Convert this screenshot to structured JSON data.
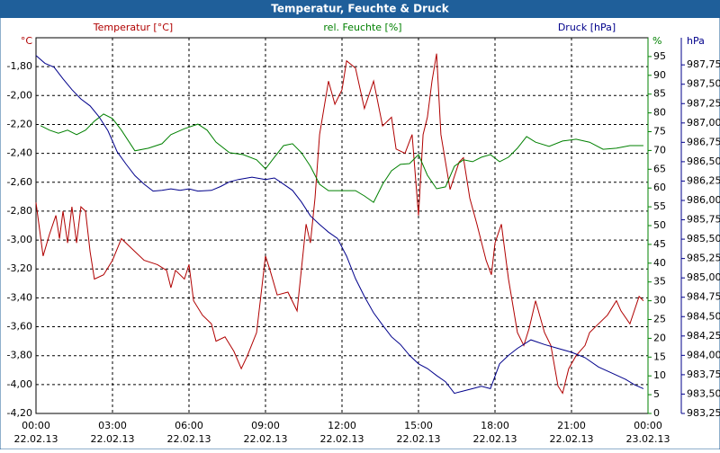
{
  "chart_data": {
    "type": "line",
    "title": "Temperatur, Feuchte & Druck",
    "grid": true,
    "xlim": [
      0,
      24
    ],
    "xticks": [
      {
        "value": 0,
        "label": "00:00"
      },
      {
        "value": 3,
        "label": "03:00"
      },
      {
        "value": 6,
        "label": "06:00"
      },
      {
        "value": 9,
        "label": "09:00"
      },
      {
        "value": 12,
        "label": "12:00"
      },
      {
        "value": 15,
        "label": "15:00"
      },
      {
        "value": 18,
        "label": "18:00"
      },
      {
        "value": 21,
        "label": "21:00"
      },
      {
        "value": 24,
        "label": "00:00"
      }
    ],
    "xtick_dates": [
      "22.02.13",
      "22.02.13",
      "22.02.13",
      "22.02.13",
      "22.02.13",
      "22.02.13",
      "22.02.13",
      "22.02.13",
      "23.02.13"
    ],
    "ylabel": "Temperatur [°C]",
    "yunit": "°C",
    "ycolor": "#b00000",
    "ylim": [
      -4.2,
      -1.6
    ],
    "yticks": [
      {
        "value": -4.2,
        "label": "-4,20"
      },
      {
        "value": -4.0,
        "label": "-4,00"
      },
      {
        "value": -3.8,
        "label": "-3,80"
      },
      {
        "value": -3.6,
        "label": "-3,60"
      },
      {
        "value": -3.4,
        "label": "-3,40"
      },
      {
        "value": -3.2,
        "label": "-3,20"
      },
      {
        "value": -3.0,
        "label": "-3,00"
      },
      {
        "value": -2.8,
        "label": "-2,80"
      },
      {
        "value": -2.6,
        "label": "-2,60"
      },
      {
        "value": -2.4,
        "label": "-2,40"
      },
      {
        "value": -2.2,
        "label": "-2,20"
      },
      {
        "value": -2.0,
        "label": "-2,00"
      },
      {
        "value": -1.8,
        "label": "-1,80"
      }
    ],
    "y2label": "rel. Feuchte [%]",
    "y2unit": "%",
    "y2color": "#008000",
    "y2lim": [
      0,
      100
    ],
    "y2ticks": [
      0,
      5,
      10,
      15,
      20,
      25,
      30,
      35,
      40,
      45,
      50,
      55,
      60,
      65,
      70,
      75,
      80,
      85,
      90,
      95
    ],
    "y3label": "Druck [hPa]",
    "y3unit": "hPa",
    "y3color": "#00008b",
    "y3lim": [
      983.25,
      988.1
    ],
    "y3ticks": [
      {
        "value": 983.25,
        "label": "983,25"
      },
      {
        "value": 983.5,
        "label": "983,50"
      },
      {
        "value": 983.75,
        "label": "983,75"
      },
      {
        "value": 984.0,
        "label": "984,00"
      },
      {
        "value": 984.25,
        "label": "984,25"
      },
      {
        "value": 984.5,
        "label": "984,50"
      },
      {
        "value": 984.75,
        "label": "984,75"
      },
      {
        "value": 985.0,
        "label": "985,00"
      },
      {
        "value": 985.25,
        "label": "985,25"
      },
      {
        "value": 985.5,
        "label": "985,50"
      },
      {
        "value": 985.75,
        "label": "985,75"
      },
      {
        "value": 986.0,
        "label": "986,00"
      },
      {
        "value": 986.25,
        "label": "986,25"
      },
      {
        "value": 986.5,
        "label": "986,50"
      },
      {
        "value": 986.75,
        "label": "986,75"
      },
      {
        "value": 987.0,
        "label": "987,00"
      },
      {
        "value": 987.25,
        "label": "987,25"
      },
      {
        "value": 987.5,
        "label": "987,50"
      },
      {
        "value": 987.75,
        "label": "987,75"
      }
    ],
    "series": [
      {
        "name": "Temperatur",
        "color": "#b00000",
        "axis": "y",
        "x": [
          0,
          0.28,
          0.53,
          0.78,
          0.92,
          1.06,
          1.24,
          1.41,
          1.59,
          1.76,
          1.94,
          2.12,
          2.29,
          2.65,
          3.0,
          3.35,
          3.88,
          4.24,
          4.76,
          5.12,
          5.29,
          5.47,
          5.82,
          6.0,
          6.18,
          6.53,
          6.88,
          7.06,
          7.41,
          7.76,
          8.05,
          8.29,
          8.65,
          9.0,
          9.18,
          9.46,
          9.88,
          10.24,
          10.59,
          10.76,
          10.94,
          11.12,
          11.29,
          11.47,
          11.72,
          12.0,
          12.18,
          12.53,
          12.88,
          13.24,
          13.59,
          13.94,
          14.12,
          14.47,
          14.75,
          15.0,
          15.18,
          15.35,
          15.53,
          15.71,
          15.88,
          16.24,
          16.59,
          16.76,
          17.01,
          17.29,
          17.65,
          17.86,
          18.0,
          18.25,
          18.53,
          18.88,
          19.13,
          19.34,
          19.59,
          19.94,
          20.19,
          20.47,
          20.65,
          20.89,
          21.18,
          21.53,
          21.71,
          22.06,
          22.41,
          22.76,
          22.94,
          23.29,
          23.65,
          23.82
        ],
        "values": [
          -2.74,
          -3.11,
          -2.96,
          -2.83,
          -2.99,
          -2.8,
          -3.02,
          -2.77,
          -3.02,
          -2.77,
          -2.8,
          -3.08,
          -3.27,
          -3.24,
          -3.14,
          -2.99,
          -3.08,
          -3.14,
          -3.17,
          -3.21,
          -3.33,
          -3.21,
          -3.27,
          -3.17,
          -3.42,
          -3.52,
          -3.58,
          -3.7,
          -3.67,
          -3.77,
          -3.89,
          -3.8,
          -3.64,
          -3.11,
          -3.21,
          -3.38,
          -3.36,
          -3.49,
          -2.89,
          -3.02,
          -2.71,
          -2.27,
          -2.09,
          -1.9,
          -2.06,
          -1.96,
          -1.76,
          -1.81,
          -2.09,
          -1.9,
          -2.21,
          -2.15,
          -2.37,
          -2.4,
          -2.27,
          -2.83,
          -2.27,
          -2.15,
          -1.9,
          -1.71,
          -2.27,
          -2.65,
          -2.46,
          -2.43,
          -2.71,
          -2.89,
          -3.14,
          -3.24,
          -3.02,
          -2.89,
          -3.27,
          -3.64,
          -3.73,
          -3.61,
          -3.42,
          -3.64,
          -3.73,
          -4.01,
          -4.06,
          -3.89,
          -3.8,
          -3.73,
          -3.64,
          -3.58,
          -3.52,
          -3.42,
          -3.49,
          -3.58,
          -3.39,
          -3.42
        ]
      },
      {
        "name": "rel. Feuchte",
        "color": "#008000",
        "axis": "y2",
        "x": [
          0.18,
          0.53,
          0.88,
          1.24,
          1.59,
          1.94,
          2.29,
          2.65,
          3.0,
          3.35,
          3.88,
          4.41,
          4.94,
          5.29,
          5.82,
          6.35,
          6.71,
          7.06,
          7.59,
          8.12,
          8.65,
          9.0,
          9.35,
          9.71,
          10.06,
          10.41,
          10.76,
          11.12,
          11.47,
          12.0,
          12.53,
          12.88,
          13.24,
          13.59,
          13.94,
          14.29,
          14.65,
          15.0,
          15.35,
          15.71,
          16.06,
          16.41,
          16.76,
          17.12,
          17.47,
          17.82,
          18.18,
          18.53,
          18.88,
          19.24,
          19.59,
          20.12,
          20.65,
          21.18,
          21.71,
          22.24,
          22.76,
          23.29,
          23.82
        ],
        "values": [
          76.6,
          75.4,
          74.6,
          75.4,
          74.2,
          75.4,
          77.8,
          79.7,
          78.5,
          75.4,
          69.9,
          70.6,
          71.8,
          74.2,
          75.8,
          77.0,
          75.4,
          72.2,
          69.4,
          68.9,
          67.5,
          65.1,
          68.2,
          71.3,
          71.8,
          69.4,
          65.8,
          61.0,
          59.3,
          59.3,
          59.3,
          57.9,
          56.2,
          61.0,
          64.6,
          66.3,
          66.5,
          68.9,
          63.4,
          59.8,
          60.3,
          65.8,
          67.5,
          67.0,
          68.2,
          68.9,
          67.0,
          68.2,
          70.6,
          73.7,
          72.2,
          71.1,
          72.5,
          73.0,
          72.2,
          70.3,
          70.6,
          71.3,
          71.3
        ]
      },
      {
        "name": "Druck",
        "color": "#00008b",
        "axis": "y3",
        "x": [
          0,
          0.35,
          0.71,
          1.06,
          1.41,
          1.76,
          2.12,
          2.47,
          2.82,
          3.18,
          3.53,
          3.88,
          4.24,
          4.59,
          4.94,
          5.29,
          5.65,
          6.0,
          6.35,
          6.88,
          7.24,
          7.59,
          7.94,
          8.47,
          9.0,
          9.35,
          9.71,
          10.06,
          10.41,
          10.76,
          11.12,
          11.47,
          11.82,
          12.18,
          12.53,
          12.88,
          13.24,
          13.59,
          13.94,
          14.29,
          14.65,
          15.0,
          15.35,
          15.71,
          16.06,
          16.41,
          16.76,
          17.12,
          17.47,
          17.82,
          18.18,
          18.53,
          18.88,
          19.41,
          19.94,
          20.47,
          21.0,
          21.53,
          22.06,
          22.59,
          23.12,
          23.47,
          23.82
        ],
        "values": [
          987.87,
          987.77,
          987.72,
          987.57,
          987.43,
          987.31,
          987.22,
          987.08,
          986.9,
          986.63,
          986.47,
          986.32,
          986.21,
          986.12,
          986.13,
          986.15,
          986.13,
          986.15,
          986.12,
          986.13,
          986.18,
          986.24,
          986.27,
          986.3,
          986.27,
          986.29,
          986.21,
          986.13,
          985.98,
          985.8,
          985.69,
          985.59,
          985.51,
          985.28,
          984.99,
          984.76,
          984.55,
          984.39,
          984.24,
          984.14,
          984.0,
          983.89,
          983.83,
          983.74,
          983.66,
          983.51,
          983.54,
          983.57,
          983.6,
          983.57,
          983.89,
          984.0,
          984.09,
          984.2,
          984.14,
          984.09,
          984.04,
          983.97,
          983.85,
          983.77,
          983.69,
          983.62,
          983.57
        ]
      }
    ]
  }
}
